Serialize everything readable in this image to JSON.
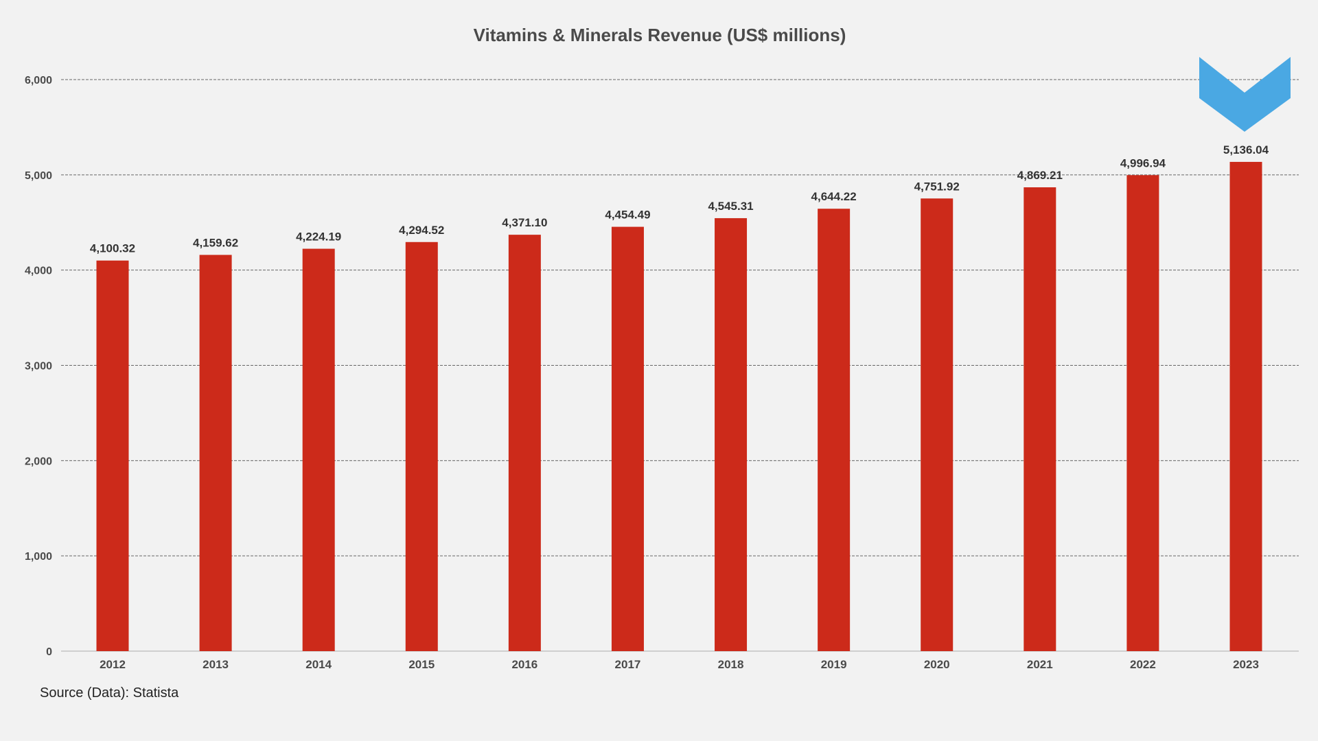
{
  "chart_data": {
    "type": "bar",
    "title": "Vitamins & Minerals Revenue (US$ millions)",
    "xlabel": "",
    "ylabel": "",
    "categories": [
      "2012",
      "2013",
      "2014",
      "2015",
      "2016",
      "2017",
      "2018",
      "2019",
      "2020",
      "2021",
      "2022",
      "2023"
    ],
    "values": [
      4100.32,
      4159.62,
      4224.19,
      4294.52,
      4371.1,
      4454.49,
      4545.31,
      4644.22,
      4751.92,
      4869.21,
      4996.94,
      5136.04
    ],
    "data_labels": [
      "4,100.32",
      "4,159.62",
      "4,224.19",
      "4,294.52",
      "4,371.10",
      "4,454.49",
      "4,545.31",
      "4,644.22",
      "4,751.92",
      "4,869.21",
      "4,996.94",
      "5,136.04"
    ],
    "ylim": [
      0,
      6000
    ],
    "yticks": [
      0,
      1000,
      2000,
      3000,
      4000,
      5000,
      6000
    ],
    "ytick_labels": [
      "0",
      "1,000",
      "2,000",
      "3,000",
      "4,000",
      "5,000",
      "6,000"
    ],
    "grid": true,
    "bar_color": "#cc2a1a",
    "logo_color": "#4aa8e3"
  },
  "source": "Source (Data): Statista"
}
